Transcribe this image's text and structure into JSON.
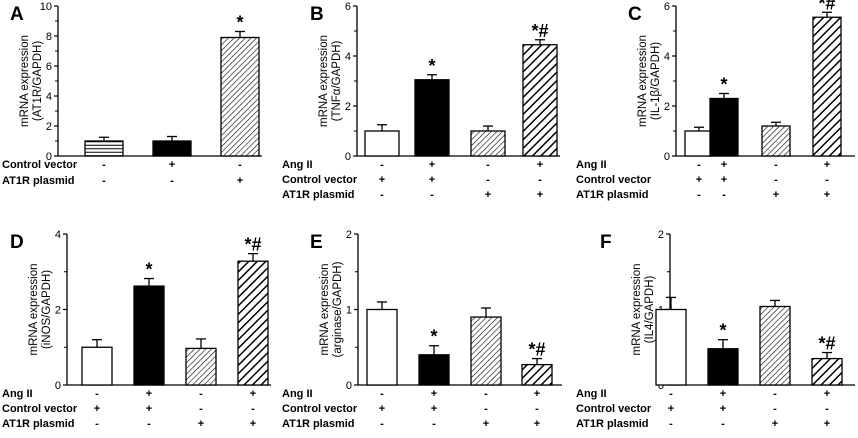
{
  "chart_data": [
    {
      "type": "bar",
      "panel_label": "A",
      "ylabel_lines": [
        "mRNA expression",
        "(AT1R/GAPDH)"
      ],
      "ylim": [
        0,
        10
      ],
      "yticks": [
        2,
        4,
        6,
        8,
        10
      ],
      "categories": [
        "Control",
        "Control vector",
        "AT1R plasmid"
      ],
      "values": [
        1.0,
        1.0,
        7.9
      ],
      "errors": [
        0.25,
        0.3,
        0.4
      ],
      "fills": [
        "hline",
        "black",
        "diag-fine"
      ],
      "annotations": [
        "",
        "",
        "*"
      ],
      "rows": [
        {
          "label": "Control vector",
          "marks": [
            "-",
            "+",
            "-"
          ]
        },
        {
          "label": "AT1R plasmid",
          "marks": [
            "-",
            "-",
            "+"
          ]
        }
      ]
    },
    {
      "type": "bar",
      "panel_label": "B",
      "ylabel_lines": [
        "mRNA expression",
        "(TNFα/GAPDH)"
      ],
      "ylim": [
        0,
        6
      ],
      "yticks": [
        2,
        4,
        6
      ],
      "categories": [
        "Control",
        "Ang II + Control vector",
        "AT1R plasmid",
        "Ang II + AT1R plasmid"
      ],
      "values": [
        1.0,
        3.05,
        1.0,
        4.45
      ],
      "errors": [
        0.25,
        0.2,
        0.2,
        0.2
      ],
      "fills": [
        "white",
        "black",
        "diag-fine",
        "diag-bold"
      ],
      "annotations": [
        "",
        "*",
        "",
        "*#"
      ],
      "rows": [
        {
          "label": "Ang II",
          "marks": [
            "-",
            "+",
            "-",
            "+"
          ]
        },
        {
          "label": "Control vector",
          "marks": [
            "+",
            "+",
            "-",
            "-"
          ]
        },
        {
          "label": "AT1R plasmid",
          "marks": [
            "-",
            "-",
            "+",
            "+"
          ]
        }
      ]
    },
    {
      "type": "bar",
      "panel_label": "C",
      "ylabel_lines": [
        "mRNA expression",
        "(IL-1β/GAPDH)"
      ],
      "ylim": [
        0,
        6
      ],
      "yticks": [
        2,
        4,
        6
      ],
      "categories": [
        "Control",
        "Ang II + Control vector",
        "AT1R plasmid",
        "Ang II + AT1R plasmid"
      ],
      "values": [
        1.0,
        2.3,
        1.2,
        5.55
      ],
      "errors": [
        0.15,
        0.2,
        0.15,
        0.2
      ],
      "fills": [
        "white",
        "black",
        "diag-fine",
        "diag-bold"
      ],
      "annotations": [
        "",
        "*",
        "",
        "*#"
      ],
      "rows": [
        {
          "label": "Ang II",
          "marks": [
            "-",
            "+",
            "-",
            "+"
          ]
        },
        {
          "label": "Control vector",
          "marks": [
            "+",
            "+",
            "-",
            "-"
          ]
        },
        {
          "label": "AT1R plasmid",
          "marks": [
            "-",
            "-",
            "+",
            "+"
          ]
        }
      ]
    },
    {
      "type": "bar",
      "panel_label": "D",
      "ylabel_lines": [
        "mRNA expression",
        "(iNOS/GAPDH)"
      ],
      "ylim": [
        0,
        4
      ],
      "yticks": [
        2,
        4
      ],
      "categories": [
        "Control",
        "Ang II + Control vector",
        "AT1R plasmid",
        "Ang II + AT1R plasmid"
      ],
      "values": [
        1.0,
        2.62,
        0.97,
        3.28
      ],
      "errors": [
        0.2,
        0.2,
        0.25,
        0.2
      ],
      "fills": [
        "white",
        "black",
        "diag-fine",
        "diag-bold"
      ],
      "annotations": [
        "",
        "*",
        "",
        "*#"
      ],
      "rows": [
        {
          "label": "Ang II",
          "marks": [
            "-",
            "+",
            "-",
            "+"
          ]
        },
        {
          "label": "Control vector",
          "marks": [
            "+",
            "+",
            "-",
            "-"
          ]
        },
        {
          "label": "AT1R plasmid",
          "marks": [
            "-",
            "-",
            "+",
            "+"
          ]
        }
      ]
    },
    {
      "type": "bar",
      "panel_label": "E",
      "ylabel_lines": [
        "mRNA expression",
        "(arginase/GAPDH)"
      ],
      "ylim": [
        0,
        2
      ],
      "yticks": [
        1,
        2
      ],
      "categories": [
        "Control",
        "Ang II + Control vector",
        "AT1R plasmid",
        "Ang II + AT1R plasmid"
      ],
      "values": [
        1.0,
        0.4,
        0.9,
        0.27
      ],
      "errors": [
        0.1,
        0.12,
        0.12,
        0.08
      ],
      "fills": [
        "white",
        "black",
        "diag-fine",
        "diag-bold"
      ],
      "annotations": [
        "",
        "*",
        "",
        "*#"
      ],
      "rows": [
        {
          "label": "Ang II",
          "marks": [
            "-",
            "+",
            "-",
            "+"
          ]
        },
        {
          "label": "Control vector",
          "marks": [
            "+",
            "+",
            "-",
            "-"
          ]
        },
        {
          "label": "AT1R plasmid",
          "marks": [
            "-",
            "-",
            "+",
            "+"
          ]
        }
      ]
    },
    {
      "type": "bar",
      "panel_label": "F",
      "ylabel_lines": [
        "mRNA expression",
        "(IL4/GAPDH)"
      ],
      "ylim": [
        0,
        2
      ],
      "yticks": [
        1,
        2
      ],
      "categories": [
        "Control",
        "Ang II + Control vector",
        "AT1R plasmid",
        "Ang II + AT1R plasmid"
      ],
      "values": [
        1.0,
        0.48,
        1.04,
        0.35
      ],
      "errors": [
        0.16,
        0.12,
        0.08,
        0.08
      ],
      "fills": [
        "white",
        "black",
        "diag-fine",
        "diag-bold"
      ],
      "annotations": [
        "",
        "*",
        "",
        "*#"
      ],
      "rows": [
        {
          "label": "Ang II",
          "marks": [
            "-",
            "+",
            "-",
            "+"
          ]
        },
        {
          "label": "Control vector",
          "marks": [
            "+",
            "+",
            "-",
            "-"
          ]
        },
        {
          "label": "AT1R plasmid",
          "marks": [
            "-",
            "-",
            "+",
            "+"
          ]
        }
      ]
    }
  ]
}
